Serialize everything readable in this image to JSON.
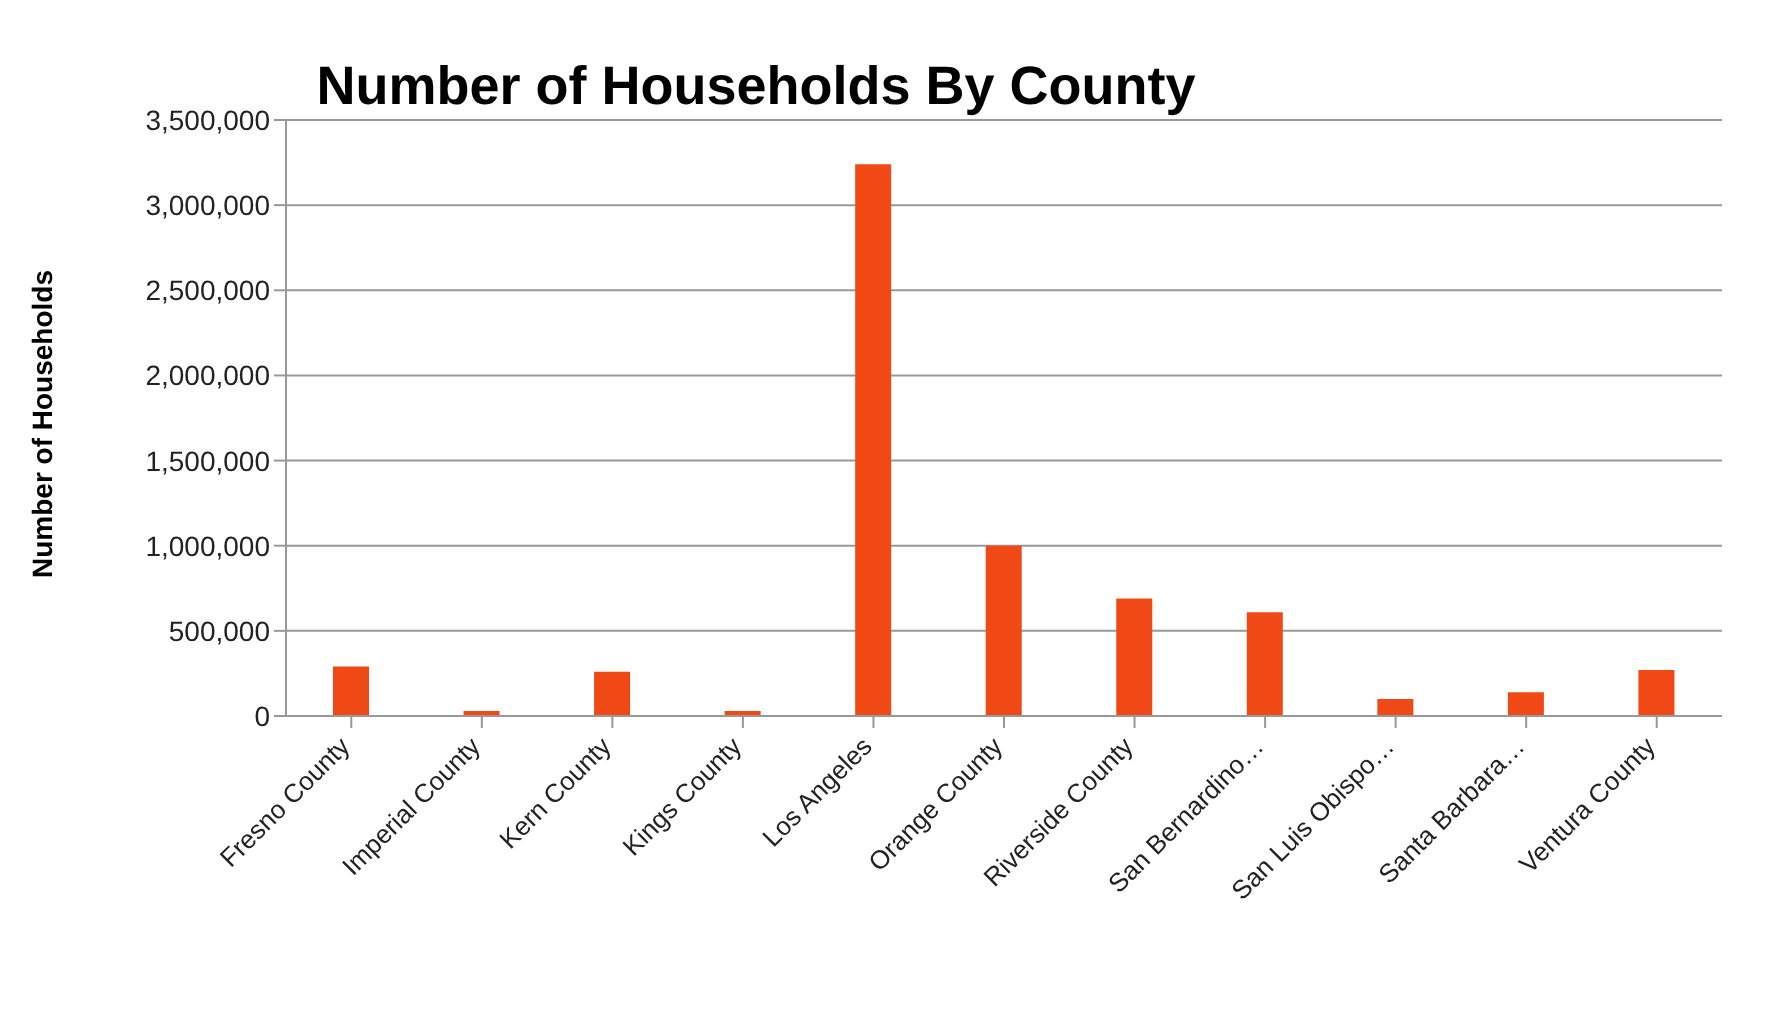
{
  "chart_data": {
    "type": "bar",
    "title": "Number of Households By County",
    "ylabel": "Number of Households",
    "categories": [
      "Fresno County",
      "Imperial County",
      "Kern County",
      "Kings County",
      "Los Angeles",
      "Orange County",
      "Riverside County",
      "San Bernardino…",
      "San Luis Obispo…",
      "Santa Barbara…",
      "Ventura County"
    ],
    "values": [
      290000,
      30000,
      260000,
      30000,
      3240000,
      1000000,
      690000,
      610000,
      100000,
      140000,
      270000
    ],
    "color": "#f04915",
    "ylim": [
      0,
      3500000
    ],
    "yticks": [
      0,
      {
        "value": 500000,
        "label": "500,000"
      },
      {
        "value": 1000000,
        "label": "1,000,000"
      },
      {
        "value": 1500000,
        "label": "1,500,000"
      },
      {
        "value": 2000000,
        "label": "2,000,000"
      },
      {
        "value": 2500000,
        "label": "2,500,000"
      },
      {
        "value": 3000000,
        "label": "3,000,000"
      },
      {
        "value": 3500000,
        "label": "3,500,000"
      }
    ],
    "grid": "y",
    "legend": false
  }
}
